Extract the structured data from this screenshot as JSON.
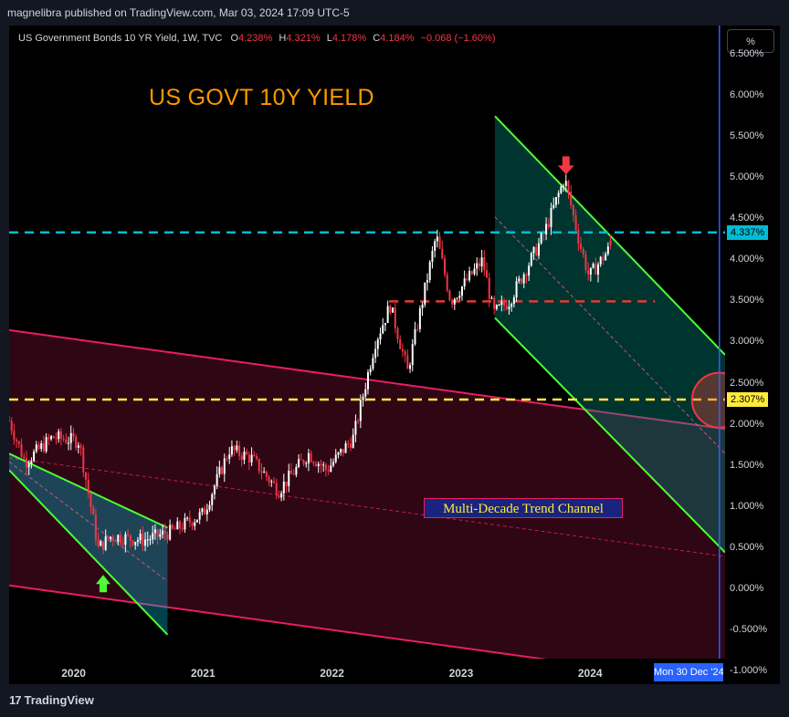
{
  "header": {
    "publisher": "magnelibra published on TradingView.com, Mar 03, 2024 17:09 UTC-5"
  },
  "legend": {
    "symbol": "US Government Bonds 10 YR Yield, 1W, TVC",
    "o_label": "O",
    "o_value": "4.238%",
    "h_label": "H",
    "h_value": "4.321%",
    "l_label": "L",
    "l_value": "4.178%",
    "c_label": "C",
    "c_value": "4.184%",
    "change": "−0.068 (−1.60%)"
  },
  "annotations": {
    "title": "US GOVT 10Y YIELD",
    "channel_label": "Multi-Decade Trend Channel"
  },
  "toolbar": {
    "scale_button": "%"
  },
  "axis": {
    "badge_current": "4.337%",
    "badge_level": "2.307%",
    "crosshair_date": "Mon 30 Dec '24"
  },
  "footer": {
    "brand": "TradingView",
    "brand_logo": "17"
  },
  "colors": {
    "candle_up": "#ffffff",
    "candle_down": "#f23645",
    "change_text": "#f23645",
    "channel_green": "#4cff34",
    "channel_pink": "#e91e63",
    "level_cyan": "#00bcd4",
    "level_yellow": "#ffeb3b",
    "level_red": "#e53935",
    "title_orange": "#ff9800",
    "crosshair": "#2962ff"
  },
  "chart_data": {
    "type": "candlestick",
    "title": "US GOVT 10Y YIELD",
    "symbol": "US Government Bonds 10 YR Yield, 1W, TVC",
    "x_ticks": [
      "2020",
      "2021",
      "2022",
      "2023",
      "2024"
    ],
    "y_ticks": [
      "6.500%",
      "6.000%",
      "5.500%",
      "5.000%",
      "4.500%",
      "4.000%",
      "3.500%",
      "3.000%",
      "2.500%",
      "2.000%",
      "1.500%",
      "1.000%",
      "0.500%",
      "0.000%",
      "-0.500%",
      "-1.000%"
    ],
    "ylim": [
      -1.15,
      6.85
    ],
    "xlim": [
      "2019-07-01",
      "2025-01-15"
    ],
    "last_ohlc": {
      "open": 4.238,
      "high": 4.321,
      "low": 4.178,
      "close": 4.184
    },
    "approx_path": [
      {
        "date": "2019-07-01",
        "yield": 2.05
      },
      {
        "date": "2019-08-15",
        "yield": 1.55
      },
      {
        "date": "2019-11-01",
        "yield": 1.85
      },
      {
        "date": "2020-01-15",
        "yield": 1.8
      },
      {
        "date": "2020-03-09",
        "yield": 0.5
      },
      {
        "date": "2020-04-15",
        "yield": 0.65
      },
      {
        "date": "2020-07-15",
        "yield": 0.6
      },
      {
        "date": "2020-10-01",
        "yield": 0.7
      },
      {
        "date": "2020-12-31",
        "yield": 0.92
      },
      {
        "date": "2021-03-15",
        "yield": 1.7
      },
      {
        "date": "2021-05-15",
        "yield": 1.6
      },
      {
        "date": "2021-08-01",
        "yield": 1.2
      },
      {
        "date": "2021-10-25",
        "yield": 1.65
      },
      {
        "date": "2021-12-15",
        "yield": 1.45
      },
      {
        "date": "2022-03-01",
        "yield": 1.85
      },
      {
        "date": "2022-05-01",
        "yield": 3.0
      },
      {
        "date": "2022-06-13",
        "yield": 3.45
      },
      {
        "date": "2022-08-01",
        "yield": 2.65
      },
      {
        "date": "2022-10-21",
        "yield": 4.3
      },
      {
        "date": "2022-12-01",
        "yield": 3.5
      },
      {
        "date": "2023-03-01",
        "yield": 4.0
      },
      {
        "date": "2023-04-01",
        "yield": 3.35
      },
      {
        "date": "2023-05-15",
        "yield": 3.5
      },
      {
        "date": "2023-07-15",
        "yield": 4.0
      },
      {
        "date": "2023-08-20",
        "yield": 4.3
      },
      {
        "date": "2023-10-19",
        "yield": 5.0
      },
      {
        "date": "2023-12-01",
        "yield": 4.2
      },
      {
        "date": "2023-12-27",
        "yield": 3.8
      },
      {
        "date": "2024-03-01",
        "yield": 4.184
      }
    ],
    "horizontal_levels": [
      {
        "value": 4.337,
        "style": "dashed",
        "color": "#00bcd4"
      },
      {
        "value": 2.307,
        "style": "dashed",
        "color": "#ffeb3b"
      },
      {
        "value": 3.5,
        "style": "dashed",
        "color": "#e53935"
      }
    ],
    "channels": [
      {
        "name": "Multi-Decade Trend Channel",
        "color": "#e91e63",
        "upper": [
          [
            "2019-07-01",
            3.15
          ],
          [
            "2025-01-15",
            1.95
          ]
        ],
        "lower": [
          [
            "2019-07-01",
            0.05
          ],
          [
            "2025-01-15",
            -1.15
          ]
        ]
      },
      {
        "color": "#4cff34",
        "upper": [
          [
            "2019-07-01",
            1.65
          ],
          [
            "2020-09-21",
            0.75
          ]
        ],
        "lower": [
          [
            "2019-07-01",
            1.45
          ],
          [
            "2020-09-21",
            -0.55
          ]
        ]
      },
      {
        "color": "#4cff34",
        "upper": [
          [
            "2023-04-05",
            5.75
          ],
          [
            "2025-01-15",
            2.85
          ]
        ],
        "lower": [
          [
            "2023-04-05",
            3.3
          ],
          [
            "2025-01-15",
            0.45
          ]
        ]
      }
    ],
    "markers": [
      {
        "type": "arrow-up",
        "date": "2020-03-23",
        "value": 0.0,
        "color": "#4cff34"
      },
      {
        "type": "arrow-down",
        "date": "2023-10-23",
        "value": 5.15,
        "color": "#f23645"
      },
      {
        "type": "circle",
        "date": "2024-12-30",
        "value": 2.3,
        "color": "#f23645"
      }
    ],
    "crosshair_x": "2024-12-30"
  }
}
